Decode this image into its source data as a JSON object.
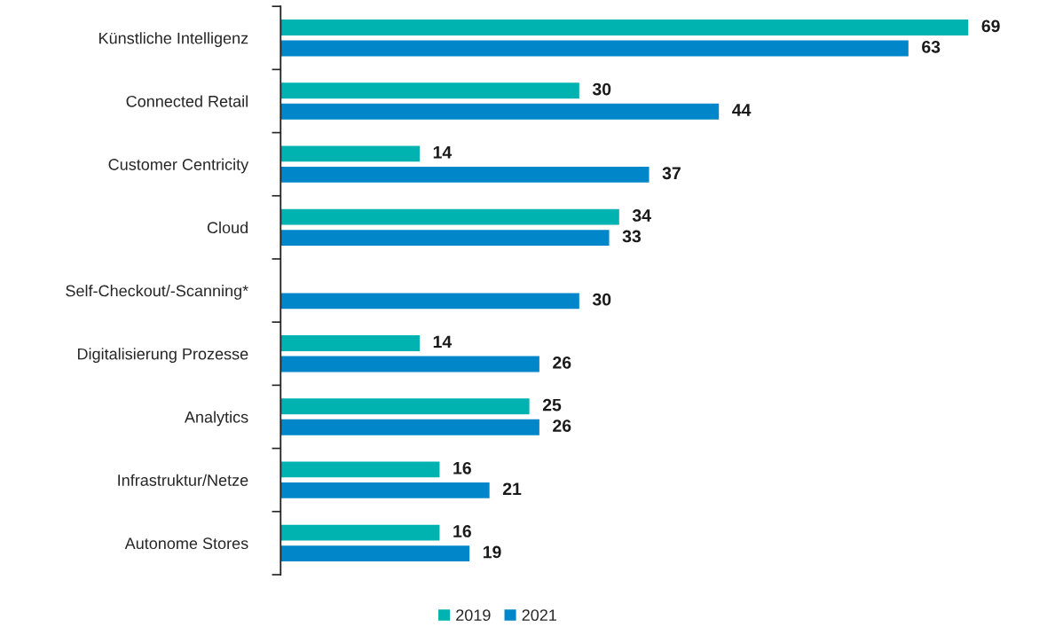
{
  "chart_data": {
    "type": "bar",
    "orientation": "horizontal",
    "categories": [
      "Künstliche Intelligenz",
      "Connected Retail",
      "Customer Centricity",
      "Cloud",
      "Self-Checkout/-Scanning*",
      "Digitalisierung Prozesse",
      "Analytics",
      "Infrastruktur/Netze",
      "Autonome Stores"
    ],
    "series": [
      {
        "name": "2019",
        "color": "#00b2b0",
        "values": [
          69,
          30,
          14,
          34,
          null,
          14,
          25,
          16,
          16
        ]
      },
      {
        "name": "2021",
        "color": "#0086c9",
        "values": [
          63,
          44,
          37,
          33,
          30,
          26,
          26,
          21,
          19
        ]
      }
    ],
    "data_labels": true,
    "legend": "bottom"
  }
}
